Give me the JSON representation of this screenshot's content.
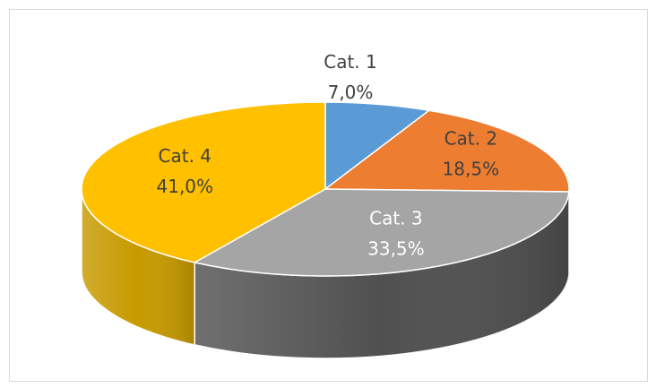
{
  "chart_data": {
    "type": "pie",
    "style": "3d",
    "title": "",
    "start_angle_deg": 0,
    "direction": "clockwise",
    "slices": [
      {
        "label": "Cat. 1",
        "value": 7.0,
        "percent_text": "7,0%",
        "color": "#5b9bd5",
        "side_color": "#3f78ad",
        "text_color": "#404040"
      },
      {
        "label": "Cat. 2",
        "value": 18.5,
        "percent_text": "18,5%",
        "color": "#ed7d31",
        "side_color": "#b95d20",
        "text_color": "#404040"
      },
      {
        "label": "Cat. 3",
        "value": 33.5,
        "percent_text": "33,5%",
        "color": "#a5a5a5",
        "side_color": "#505050",
        "text_color": "#ffffff"
      },
      {
        "label": "Cat. 4",
        "value": 41.0,
        "percent_text": "41,0%",
        "color": "#ffc000",
        "side_color": "#c79a00",
        "text_color": "#404040"
      }
    ]
  }
}
